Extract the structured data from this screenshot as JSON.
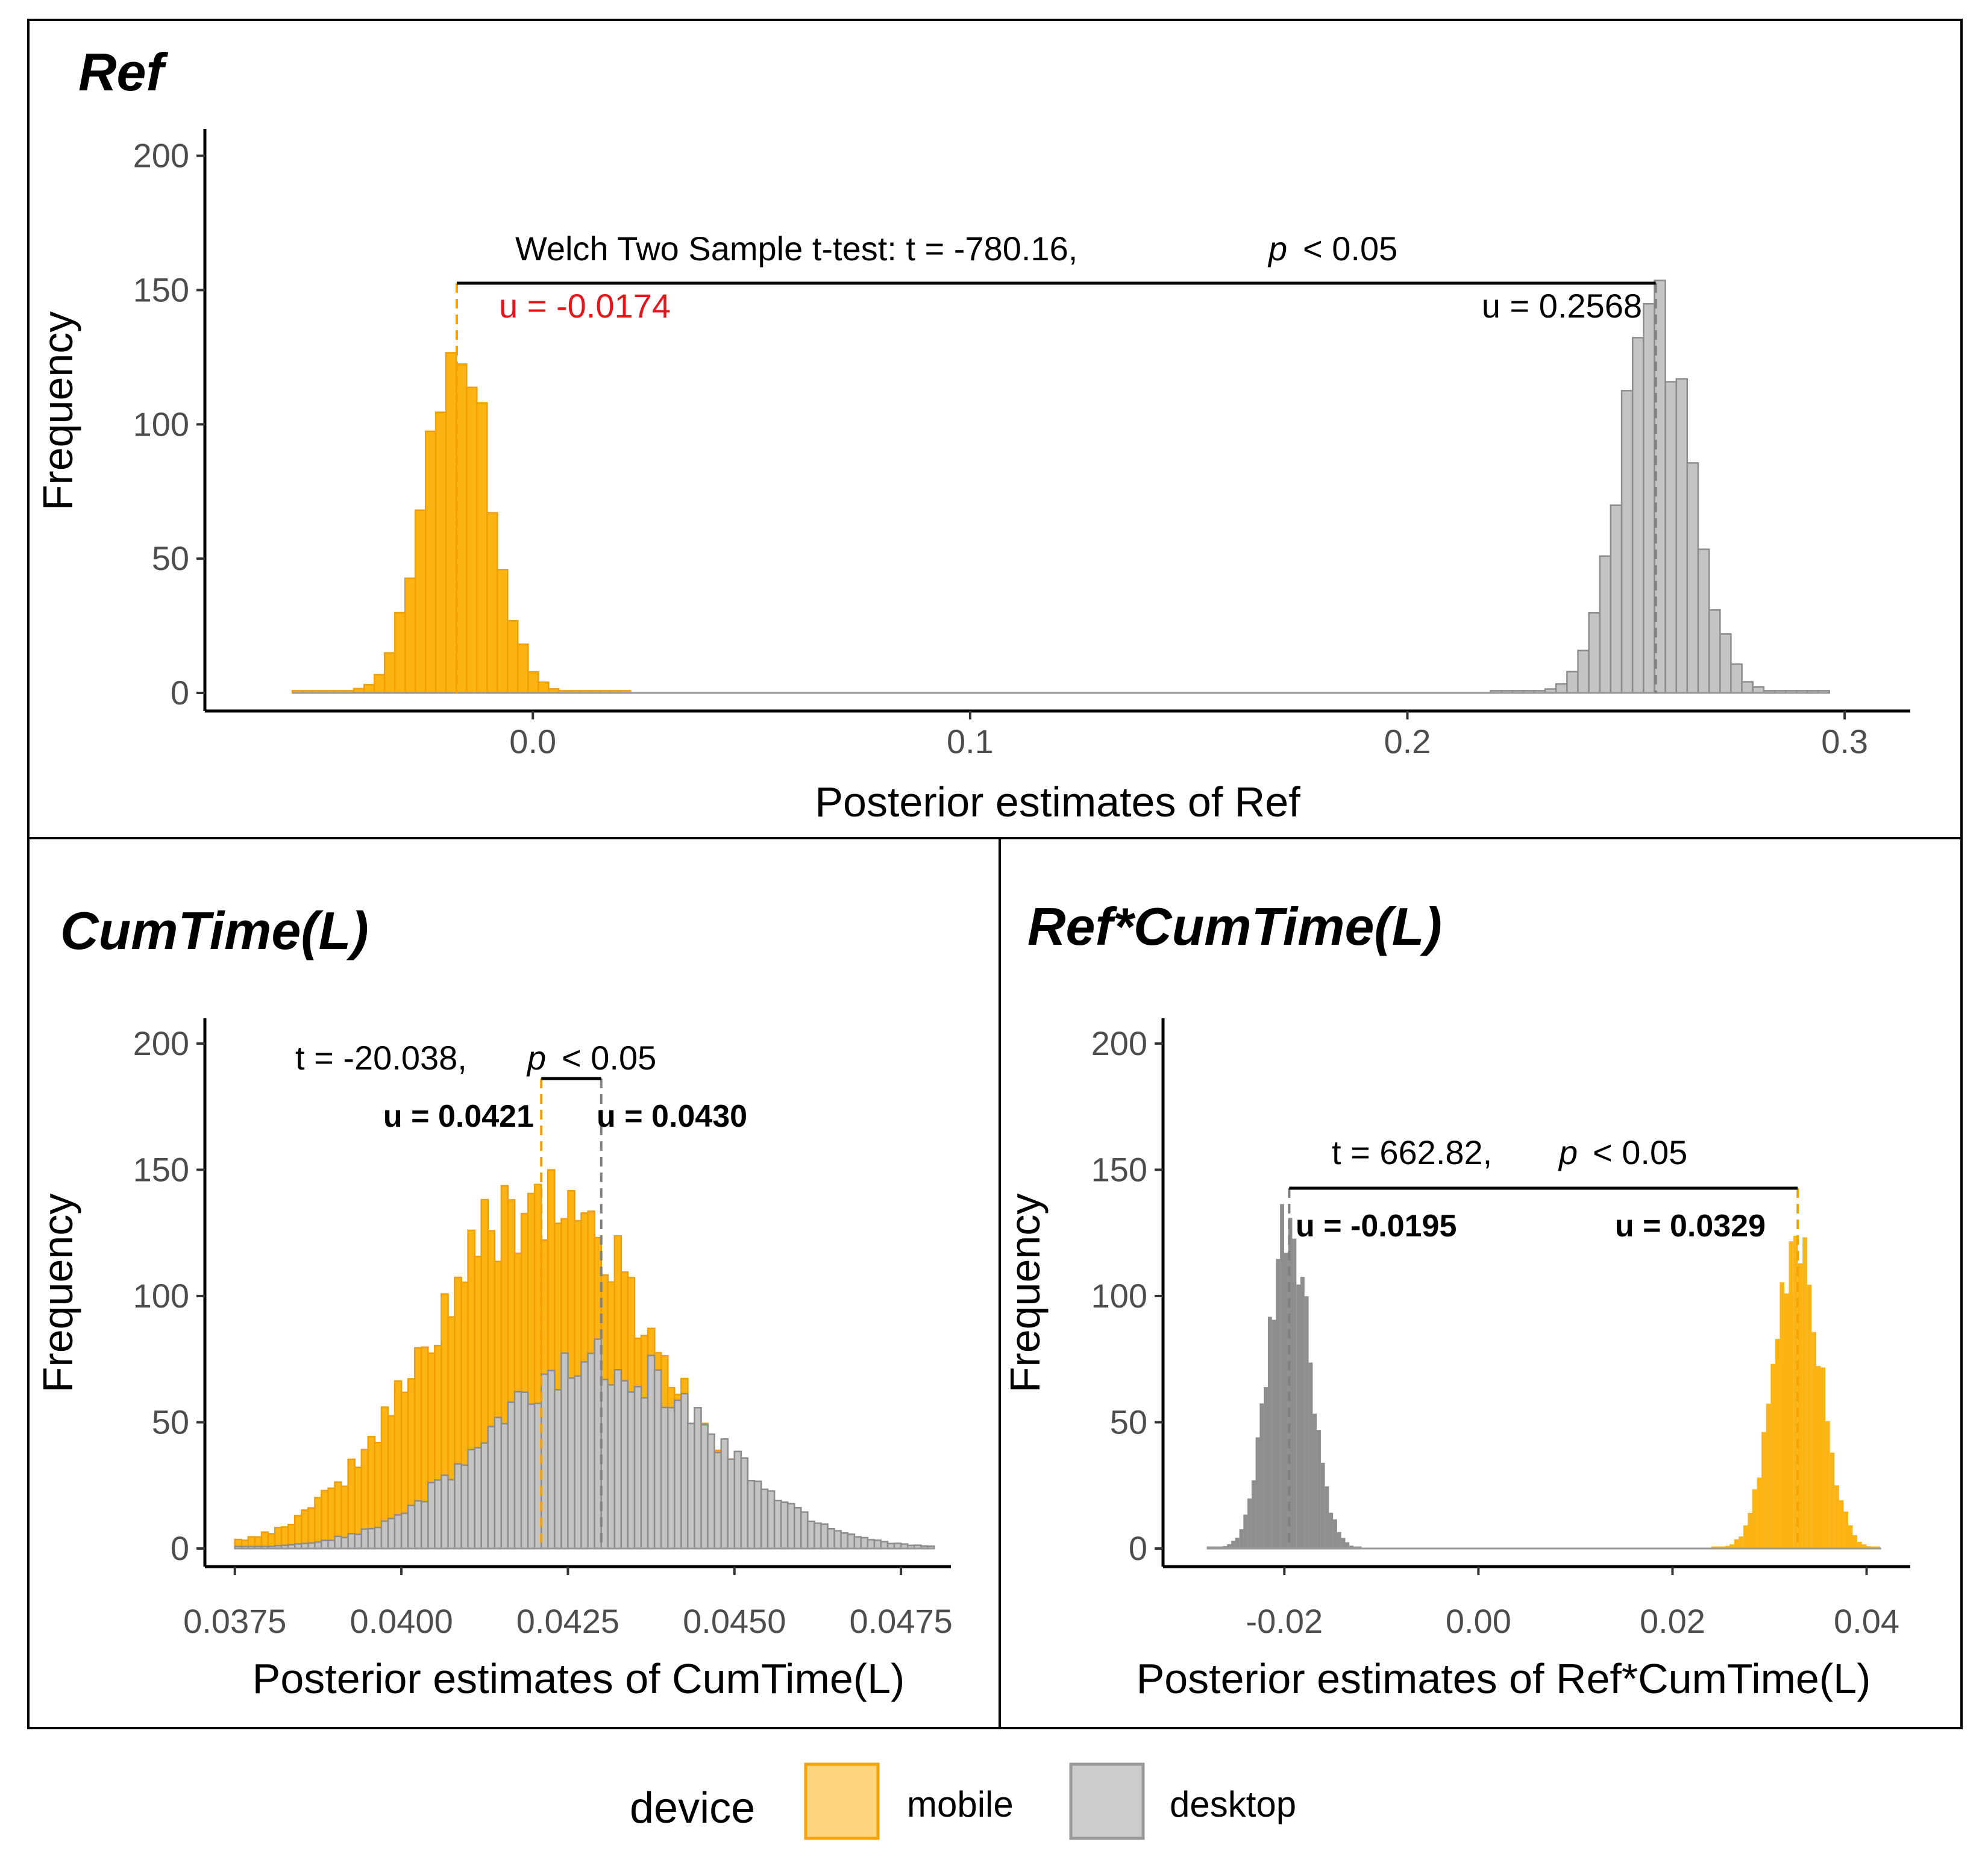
{
  "chart_data": [
    {
      "id": "ref",
      "type": "histogram",
      "title": "Ref",
      "xlabel": "Posterior estimates of Ref",
      "ylabel": "Frequency",
      "xlim": [
        -0.075,
        0.315
      ],
      "ylim": [
        0,
        210
      ],
      "x_ticks": [
        0.0,
        0.1,
        0.2,
        0.3
      ],
      "x_tick_labels": [
        "0.0",
        "0.1",
        "0.2",
        "0.3"
      ],
      "y_ticks": [
        0,
        50,
        100,
        150,
        200
      ],
      "y_tick_labels": [
        "0",
        "50",
        "100",
        "150",
        "200"
      ],
      "series": [
        {
          "name": "mobile",
          "mean": -0.0174,
          "sd": 0.0075,
          "peak": 127,
          "lo": -0.055,
          "hi": 0.022
        },
        {
          "name": "desktop",
          "mean": 0.2568,
          "sd": 0.008,
          "peak": 145,
          "lo": 0.219,
          "hi": 0.296
        }
      ],
      "test_label": "Welch Two Sample t-test:  t = -780.16,",
      "p_label": "p",
      "p_value": "< 0.05",
      "mean_labels": [
        {
          "series": "mobile",
          "text": "u = -0.0174",
          "color": "#e8141a"
        },
        {
          "series": "desktop",
          "text": "u = 0.2568",
          "color": "#000000"
        }
      ]
    },
    {
      "id": "cumtime",
      "type": "histogram",
      "title": "CumTime(L)",
      "xlabel": "Posterior estimates of CumTime(L)",
      "ylabel": "Frequency",
      "xlim": [
        0.03705,
        0.04825
      ],
      "ylim": [
        0,
        210
      ],
      "x_ticks": [
        0.0375,
        0.04,
        0.0425,
        0.045,
        0.0475
      ],
      "x_tick_labels": [
        "0.0375",
        "0.0400",
        "0.0425",
        "0.0450",
        "0.0475"
      ],
      "y_ticks": [
        0,
        50,
        100,
        150,
        200
      ],
      "y_tick_labels": [
        "0",
        "50",
        "100",
        "150",
        "200"
      ],
      "series": [
        {
          "name": "mobile",
          "mean": 0.0421,
          "sd": 0.00165,
          "peak": 140,
          "lo": 0.0375,
          "hi": 0.048
        },
        {
          "name": "desktop",
          "mean": 0.043,
          "sd": 0.00165,
          "peak": 75,
          "lo": 0.0375,
          "hi": 0.048
        }
      ],
      "test_label": "t = -20.038,",
      "p_label": "p",
      "p_value": "< 0.05",
      "mean_labels": [
        {
          "series": "mobile",
          "text": "u = 0.0421",
          "color": "#000000"
        },
        {
          "series": "desktop",
          "text": "u = 0.0430",
          "color": "#000000"
        }
      ]
    },
    {
      "id": "refcum",
      "type": "histogram",
      "title": "Ref*CumTime(L)",
      "xlabel": "Posterior estimates of Ref*CumTime(L)",
      "ylabel": "Frequency",
      "xlim": [
        -0.0325,
        0.0445
      ],
      "ylim": [
        0,
        210
      ],
      "x_ticks": [
        -0.02,
        0.0,
        0.02,
        0.04
      ],
      "x_tick_labels": [
        "-0.02",
        "0.00",
        "0.02",
        "0.04"
      ],
      "y_ticks": [
        0,
        50,
        100,
        150,
        200
      ],
      "y_tick_labels": [
        "0",
        "50",
        "100",
        "150",
        "200"
      ],
      "series": [
        {
          "name": "desktop",
          "mean": -0.0195,
          "sd": 0.0021,
          "peak": 128,
          "lo": -0.028,
          "hi": -0.012
        },
        {
          "name": "mobile",
          "mean": 0.0329,
          "sd": 0.00235,
          "peak": 122,
          "lo": 0.024,
          "hi": 0.0415
        }
      ],
      "test_label": "t =  662.82,",
      "p_label": "p",
      "p_value": "< 0.05",
      "mean_labels": [
        {
          "series": "desktop",
          "text": "u = -0.0195",
          "color": "#000000"
        },
        {
          "series": "mobile",
          "text": "u = 0.0329",
          "color": "#000000"
        }
      ]
    }
  ],
  "legend": {
    "title": "device",
    "items": [
      {
        "name": "mobile",
        "fill": "#fed47f",
        "stroke": "#f5a300"
      },
      {
        "name": "desktop",
        "fill": "#cccccc",
        "stroke": "#999999"
      }
    ]
  },
  "colors": {
    "mobile_fill": "#fcb414",
    "mobile_stroke": "#f09e00",
    "desktop_fill": "#c4c4c4",
    "desktop_stroke": "#8c8c8c",
    "desktop_dark_fill": "#8e8e8e"
  }
}
